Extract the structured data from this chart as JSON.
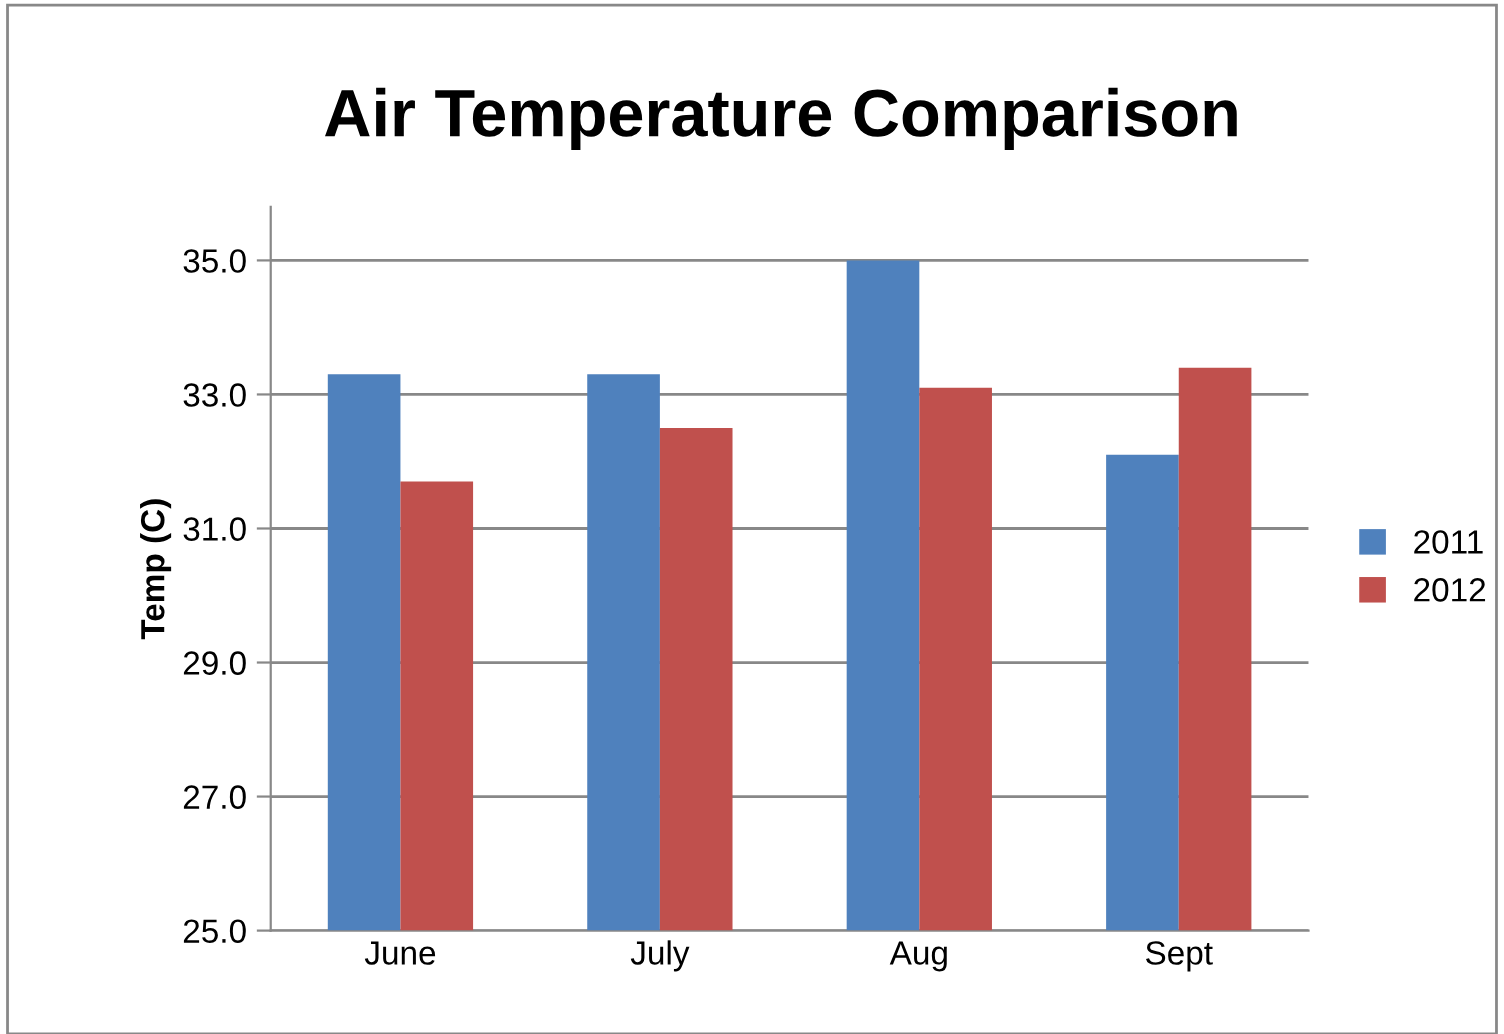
{
  "chart_data": {
    "type": "bar",
    "title": "Air Temperature Comparison",
    "ylabel": "Temp (C)",
    "categories": [
      "June",
      "July",
      "Aug",
      "Sept"
    ],
    "series": [
      {
        "name": "2011",
        "color": "#4f81bd",
        "values": [
          33.3,
          33.3,
          35.0,
          32.1
        ]
      },
      {
        "name": "2012",
        "color": "#c0504d",
        "values": [
          31.7,
          32.5,
          33.1,
          33.4
        ]
      }
    ],
    "ylim": [
      25,
      35.8
    ],
    "yticks": [
      {
        "value": 25,
        "label": "25.0"
      },
      {
        "value": 27,
        "label": "27.0"
      },
      {
        "value": 29,
        "label": "29.0"
      },
      {
        "value": 31,
        "label": "31.0"
      },
      {
        "value": 33,
        "label": "33.0"
      },
      {
        "value": 35,
        "label": "35.0"
      }
    ],
    "grid": "y",
    "legend": "right"
  }
}
